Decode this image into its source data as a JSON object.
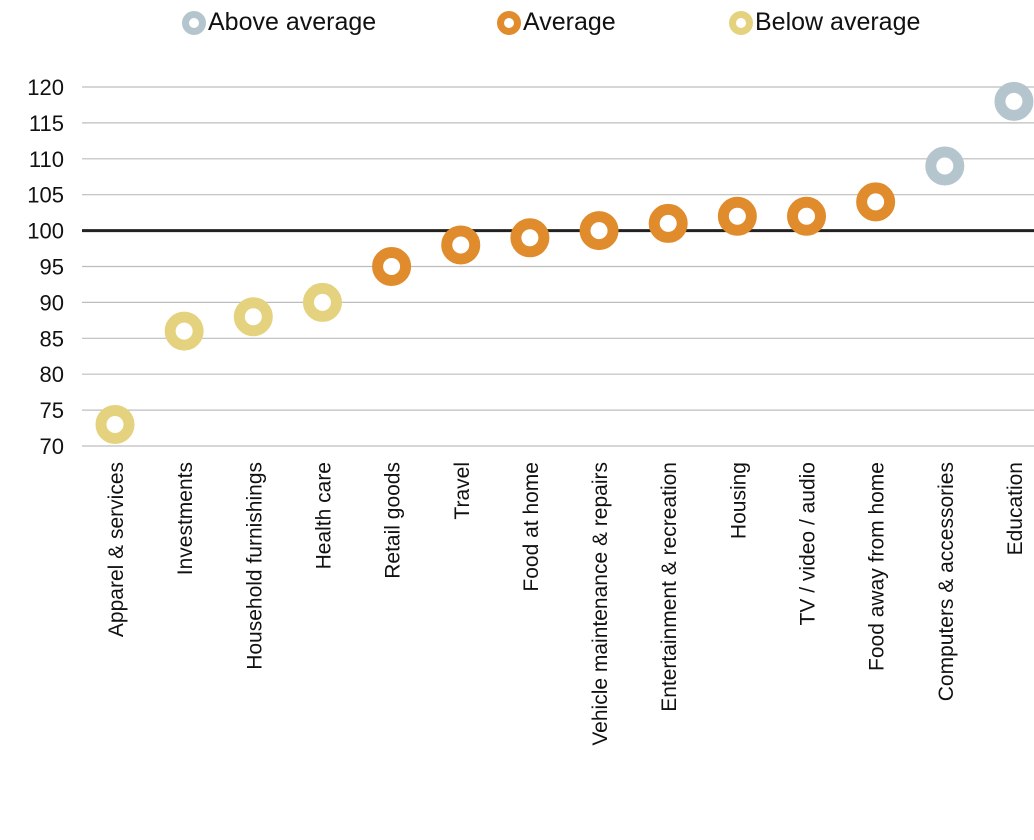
{
  "legend": [
    {
      "label": "Above average",
      "color": "#B5C5CE"
    },
    {
      "label": "Average",
      "color": "#E08B2C"
    },
    {
      "label": "Below average",
      "color": "#E4D27E"
    }
  ],
  "chart_data": {
    "type": "scatter",
    "title": "",
    "xlabel": "",
    "ylabel": "",
    "ylim": [
      70,
      120
    ],
    "yticks": [
      70,
      75,
      80,
      85,
      90,
      95,
      100,
      105,
      110,
      115,
      120
    ],
    "reference_line": 100,
    "grid": true,
    "legend_position": "top",
    "categories": [
      "Apparel & services",
      "Investments",
      "Household furnishings",
      "Health care",
      "Retail goods",
      "Travel",
      "Food at home",
      "Vehicle maintenance & repairs",
      "Entertainment & recreation",
      "Housing",
      "TV / video / audio",
      "Food away from home",
      "Computers & accessories",
      "Education"
    ],
    "values": [
      73,
      86,
      88,
      90,
      95,
      98,
      99,
      100,
      101,
      102,
      102,
      104,
      109,
      118
    ],
    "groups": [
      "Below average",
      "Below average",
      "Below average",
      "Below average",
      "Average",
      "Average",
      "Average",
      "Average",
      "Average",
      "Average",
      "Average",
      "Average",
      "Above average",
      "Above average"
    ]
  }
}
